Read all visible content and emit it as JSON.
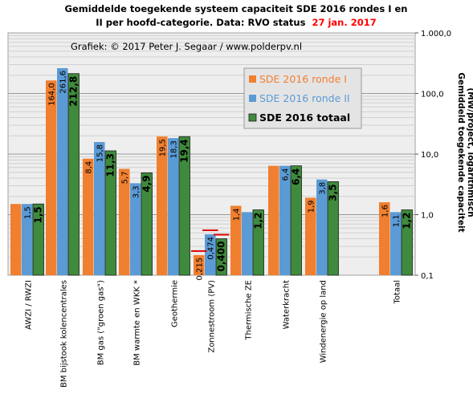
{
  "title_line1": "Gemiddelde toegekende systeem capaciteit SDE 2016 rondes I en",
  "title_line2_prefix": "II per hoofd-categorie. Data: RVO status",
  "title_line2_date": "27 jan. 2017",
  "credit": "Grafiek:  © 2017 Peter J. Segaar / www.polderpv.nl",
  "colors": {
    "ronde1": "#f07f2f",
    "ronde2": "#5b9bd5",
    "totaal": "#3f8a3c",
    "plot_bg": "#eeeeee",
    "date": "#ff0000",
    "marker": "#dd0000"
  },
  "chart_data": {
    "type": "bar",
    "scale": "log",
    "ylim": [
      0.1,
      1000
    ],
    "yticks": [
      "0,1",
      "1,0",
      "10,0",
      "100,0",
      "1.000,0"
    ],
    "ylabel_line1": "Gemiddeld toegekende capaciteit",
    "ylabel_line2": "(MW/project, logarithmisch",
    "categories": [
      "AWZI / RWZI",
      "BM bijstook kolencentrales",
      "BM gas (\"groen gas\")",
      "BM warmte en WKK *",
      "Geothermie",
      "Zonnestroom (PV)",
      "Thermische ZE",
      "Waterkracht",
      "Windenergie op land",
      "Totaal"
    ],
    "series": [
      {
        "name": "SDE 2016 ronde I",
        "values": [
          1.5,
          164.0,
          8.4,
          5.7,
          19.5,
          0.215,
          1.4,
          6.4,
          1.9,
          1.6
        ],
        "labels": [
          "",
          "164,0",
          "8,4",
          "5,7",
          "19,5",
          "0,215",
          "1,4",
          "",
          "1,9",
          "1,6"
        ]
      },
      {
        "name": "SDE 2016 ronde II",
        "values": [
          1.5,
          261.6,
          15.8,
          3.3,
          18.3,
          0.474,
          1.1,
          6.4,
          3.8,
          1.1
        ],
        "labels": [
          "1,5",
          "261,6",
          "15,8",
          "3,3",
          "18,3",
          "0,474",
          "",
          "6,4",
          "3,8",
          "1,1"
        ]
      },
      {
        "name": "SDE 2016 totaal",
        "values": [
          1.5,
          212.8,
          11.3,
          4.9,
          19.4,
          0.4,
          1.2,
          6.4,
          3.5,
          1.2
        ],
        "labels": [
          "1,5",
          "212,8",
          "11,3",
          "4,9",
          "19,4",
          "0,400",
          "1,2",
          "6,4",
          "3,5",
          "1,2"
        ]
      }
    ],
    "legend_position": "top-right",
    "grid": true
  }
}
